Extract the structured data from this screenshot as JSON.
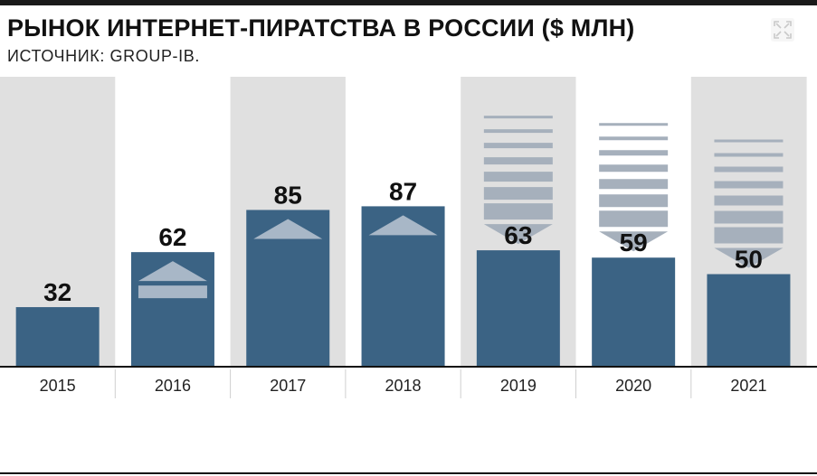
{
  "header": {
    "title": "РЫНОК ИНТЕРНЕТ-ПИРАТСТВА В РОССИИ ($ МЛН)",
    "source": "ИСТОЧНИК: GROUP-IB."
  },
  "controls": {
    "expand_icon": "expand-icon"
  },
  "colors": {
    "bar": "#3b6384",
    "band_shaded": "#e0e0e0",
    "band_plain": "#ffffff",
    "stripes_up": "#a8b7c7",
    "stripes_down": "#a6b0bc",
    "axis": "#111111",
    "value_text": "#111111"
  },
  "chart_data": {
    "type": "bar",
    "title": "РЫНОК ИНТЕРНЕТ-ПИРАТСТВА В РОССИИ ($ МЛН)",
    "subtitle": "ИСТОЧНИК: GROUP-IB.",
    "xlabel": "",
    "ylabel": "",
    "categories": [
      "2015",
      "2016",
      "2017",
      "2018",
      "2019",
      "2020",
      "2021"
    ],
    "values": [
      32,
      62,
      85,
      87,
      63,
      59,
      50
    ],
    "value_labels": [
      "32",
      "62",
      "85",
      "87",
      "63",
      "59",
      "50"
    ],
    "trend": [
      null,
      "up",
      "up",
      "up",
      "down",
      "down",
      "down"
    ],
    "ylim": [
      0,
      100
    ],
    "grid": false,
    "legend": "none"
  }
}
